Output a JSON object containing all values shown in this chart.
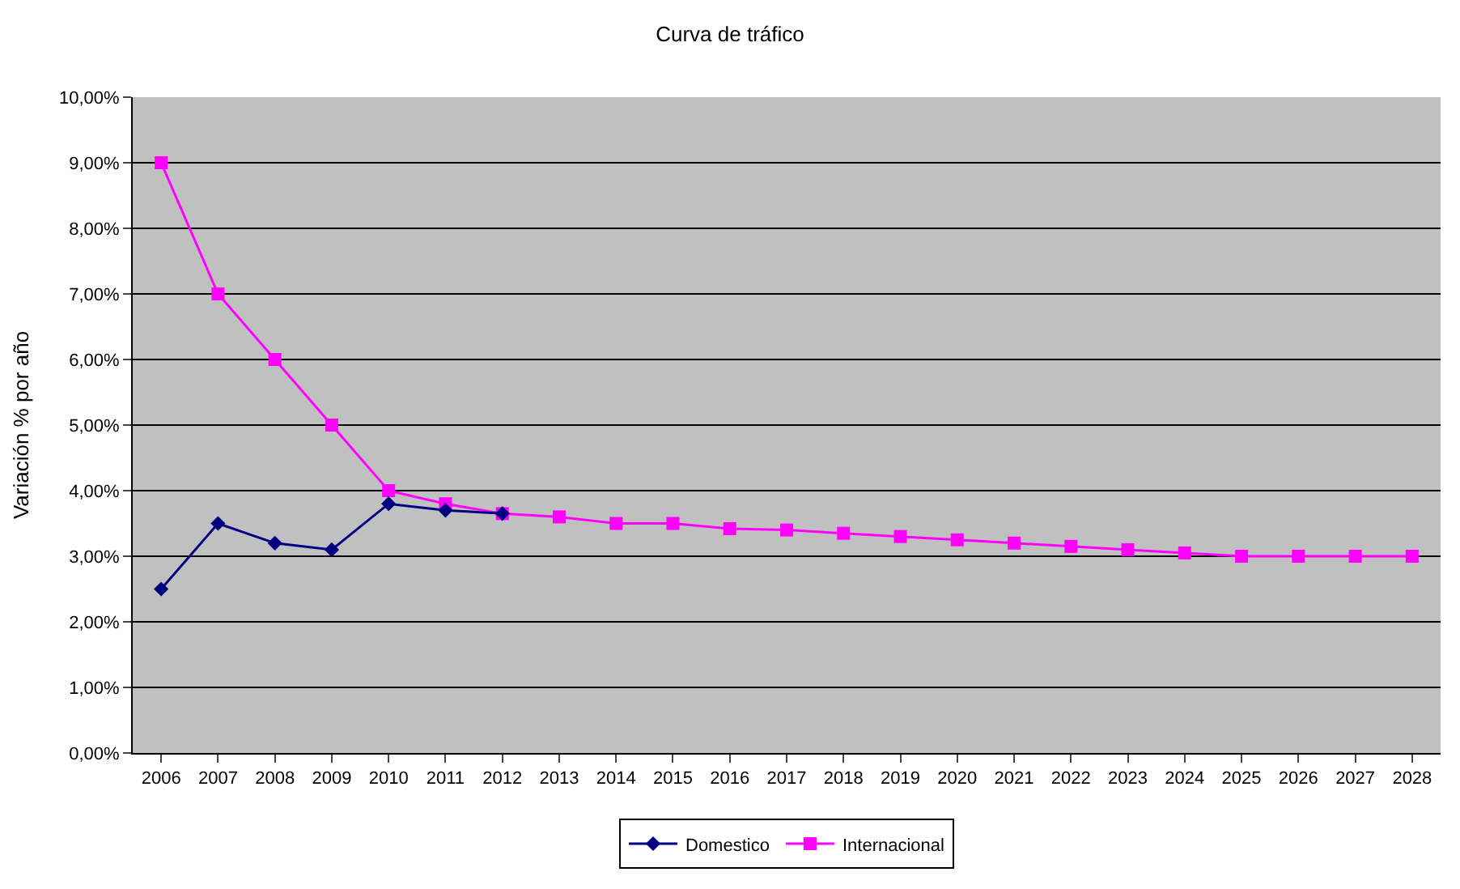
{
  "chart_data": {
    "type": "line",
    "title": "Curva de tráfico",
    "ylabel": "Variación % por año",
    "categories": [
      "2006",
      "2007",
      "2008",
      "2009",
      "2010",
      "2011",
      "2012",
      "2013",
      "2014",
      "2015",
      "2016",
      "2017",
      "2018",
      "2019",
      "2020",
      "2021",
      "2022",
      "2023",
      "2024",
      "2025",
      "2026",
      "2027",
      "2028"
    ],
    "series": [
      {
        "name": "Domestico",
        "color": "#000080",
        "marker": "diamond",
        "values": [
          2.5,
          3.5,
          3.2,
          3.1,
          3.8,
          3.7,
          3.65,
          null,
          null,
          null,
          null,
          null,
          null,
          null,
          null,
          null,
          null,
          null,
          null,
          null,
          null,
          null,
          null
        ]
      },
      {
        "name": "Internacional",
        "color": "#ff00ff",
        "marker": "square",
        "values": [
          9,
          7,
          6,
          5,
          4,
          3.8,
          3.65,
          3.6,
          3.5,
          3.5,
          3.42,
          3.4,
          3.35,
          3.3,
          3.25,
          3.2,
          3.15,
          3.1,
          3.05,
          3.0,
          3.0,
          3.0,
          3.0
        ]
      }
    ],
    "ylim": [
      0,
      10
    ],
    "yticks": [
      {
        "value": 0,
        "label": "0,00%"
      },
      {
        "value": 1,
        "label": "1,00%"
      },
      {
        "value": 2,
        "label": "2,00%"
      },
      {
        "value": 3,
        "label": "3,00%"
      },
      {
        "value": 4,
        "label": "4,00%"
      },
      {
        "value": 5,
        "label": "5,00%"
      },
      {
        "value": 6,
        "label": "6,00%"
      },
      {
        "value": 7,
        "label": "7,00%"
      },
      {
        "value": 8,
        "label": "8,00%"
      },
      {
        "value": 9,
        "label": "9,00%"
      },
      {
        "value": 10,
        "label": "10,00%"
      }
    ],
    "grid": "y",
    "legend": "bottom"
  }
}
